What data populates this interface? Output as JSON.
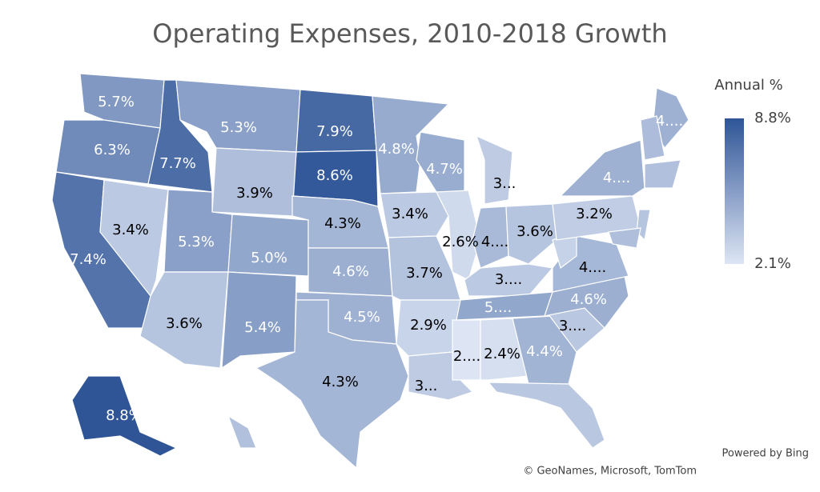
{
  "chart_data": {
    "type": "map",
    "title": "Operating Expenses, 2010-2018 Growth",
    "values": [
      5.7,
      6.3,
      7.7,
      5.3,
      7.9,
      8.6,
      3.9,
      7.4,
      3.4,
      5.3,
      5.0,
      3.6,
      5.4,
      4.3,
      4.6,
      4.5,
      4.3,
      4.8,
      3.4,
      3.7,
      2.9,
      3.3,
      4.7,
      2.6,
      3.3,
      4.1,
      3.6,
      3.4,
      5.0,
      2.1,
      2.4,
      4.4,
      3.5,
      3.5,
      4.6,
      4.2,
      3.0,
      3.2,
      4.5,
      4.5,
      4.0,
      3.8,
      3.6,
      3.9,
      8.8,
      3.8
    ],
    "value_labels": [
      "5.7%",
      "6.3%",
      "7.7%",
      "5.3%",
      "7.9%",
      "8.6%",
      "3.9%",
      "7.4%",
      "3.4%",
      "5.3%",
      "5.0%",
      "3.6%",
      "5.4%",
      "4.3%",
      "4.6%",
      "4.5%",
      "4.3%",
      "4.8%",
      "3.4%",
      "3.7%",
      "2.9%",
      "3...",
      "4.7%",
      "2.6%",
      "3...",
      "4....",
      "3.6%",
      "3....",
      "5....",
      "2....",
      "2.4%",
      "4.4%",
      null,
      "3....",
      "4.6%",
      "4....",
      null,
      "3.2%",
      "4....",
      "4....",
      null,
      null,
      null,
      null,
      "8.8%",
      null
    ],
    "colorscale": {
      "title": "Annual %",
      "lim": [
        2.1,
        8.8
      ],
      "colors": [
        "#dde5f4",
        "#2f5597"
      ],
      "ticks": [
        {
          "value": 8.8,
          "label": "8.8%"
        },
        {
          "value": 2.1,
          "label": "2.1%"
        }
      ]
    },
    "credits": [
      "Powered by Bing",
      "© GeoNames, Microsoft, TomTom"
    ]
  }
}
